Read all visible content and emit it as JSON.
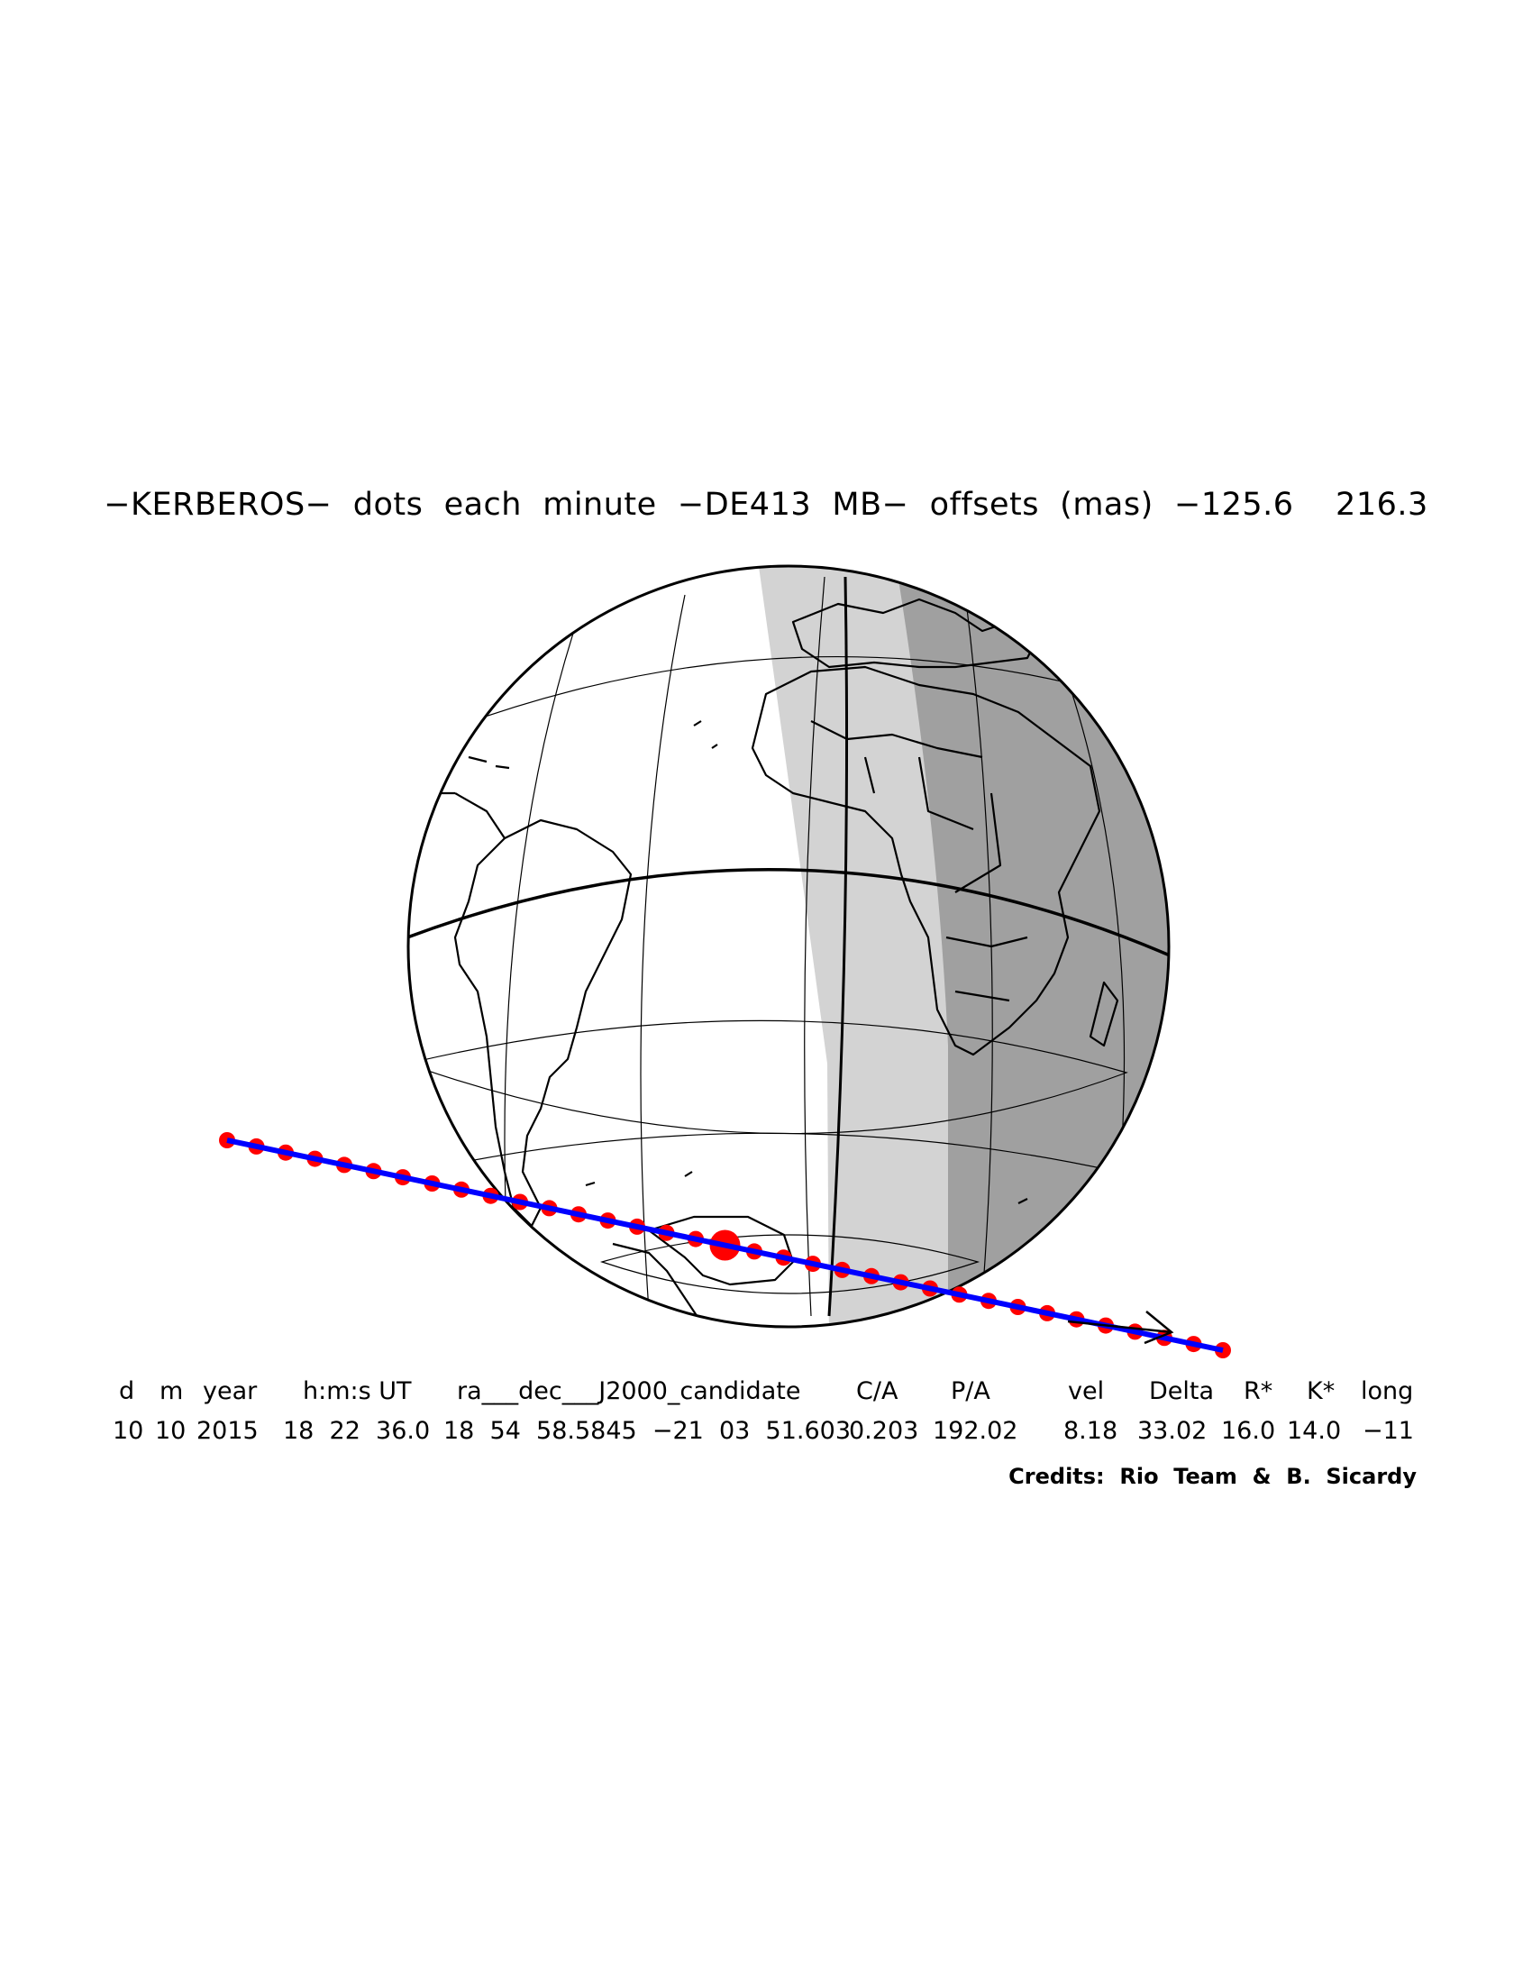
{
  "title": "−KERBEROS−  dots  each  minute  −DE413  MB−  offsets  (mas)  −125.6    216.3",
  "table": {
    "headers": [
      "d",
      "m",
      "year",
      "h:m:s UT",
      "ra___dec___J2000_candidate",
      "C/A",
      "P/A",
      "vel",
      "Delta",
      "R*",
      "K*",
      "long"
    ],
    "values": [
      "10",
      "10",
      "2015",
      "18  22  36.0",
      "18  54  58.5845  −21  03  51.603",
      "0.203",
      "192.02",
      "8.18",
      "33.02",
      "16.0",
      "14.0",
      "−11"
    ]
  },
  "credits": "Credits:  Rio  Team  &  B.  Sicardy",
  "colors": {
    "track_line": "#0000ff",
    "dots": "#ff0000",
    "twilight": "#d3d3d3",
    "night": "#a0a0a0",
    "outline": "#000000"
  },
  "occultation_track": {
    "dot_interval_minutes": 1,
    "dot_count": 35,
    "central_dot_index": 17,
    "direction": "east"
  }
}
